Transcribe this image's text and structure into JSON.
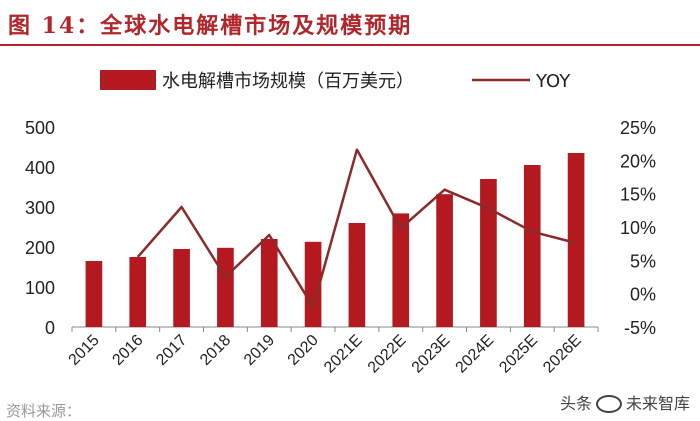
{
  "page": {
    "title": "图 14：全球水电解槽市场及规模预期",
    "source": "资料来源：",
    "watermark": {
      "prefix": "头条",
      "name": "未来智库"
    }
  },
  "chart_data": {
    "type": "bar",
    "title": "图 14：全球水电解槽市场及规模预期",
    "categories": [
      "2015",
      "2016",
      "2017",
      "2018",
      "2019",
      "2020",
      "2021E",
      "2022E",
      "2023E",
      "2024E",
      "2025E",
      "2026E"
    ],
    "series": [
      {
        "name": "水电解槽市场规模（百万美元）",
        "type": "bar",
        "axis": "left",
        "values": [
          165,
          175,
          195,
          198,
          220,
          213,
          260,
          284,
          332,
          370,
          405,
          435
        ]
      },
      {
        "name": "YOY",
        "type": "line",
        "axis": "right",
        "values": [
          null,
          5.5,
          13.0,
          2.5,
          8.8,
          -2.0,
          21.6,
          9.8,
          15.6,
          12.8,
          9.3,
          7.6
        ]
      }
    ],
    "y_left": {
      "range": [
        0,
        500
      ],
      "ticks": [
        0,
        100,
        200,
        300,
        400,
        500
      ]
    },
    "y_right": {
      "range": [
        -5,
        25
      ],
      "ticks": [
        "-5%",
        "0%",
        "5%",
        "10%",
        "15%",
        "20%",
        "25%"
      ]
    },
    "legend_position": "top",
    "grid": false,
    "colors": {
      "bar": "#b3191f",
      "line": "#8b2a2a",
      "title": "#b0262b"
    }
  }
}
